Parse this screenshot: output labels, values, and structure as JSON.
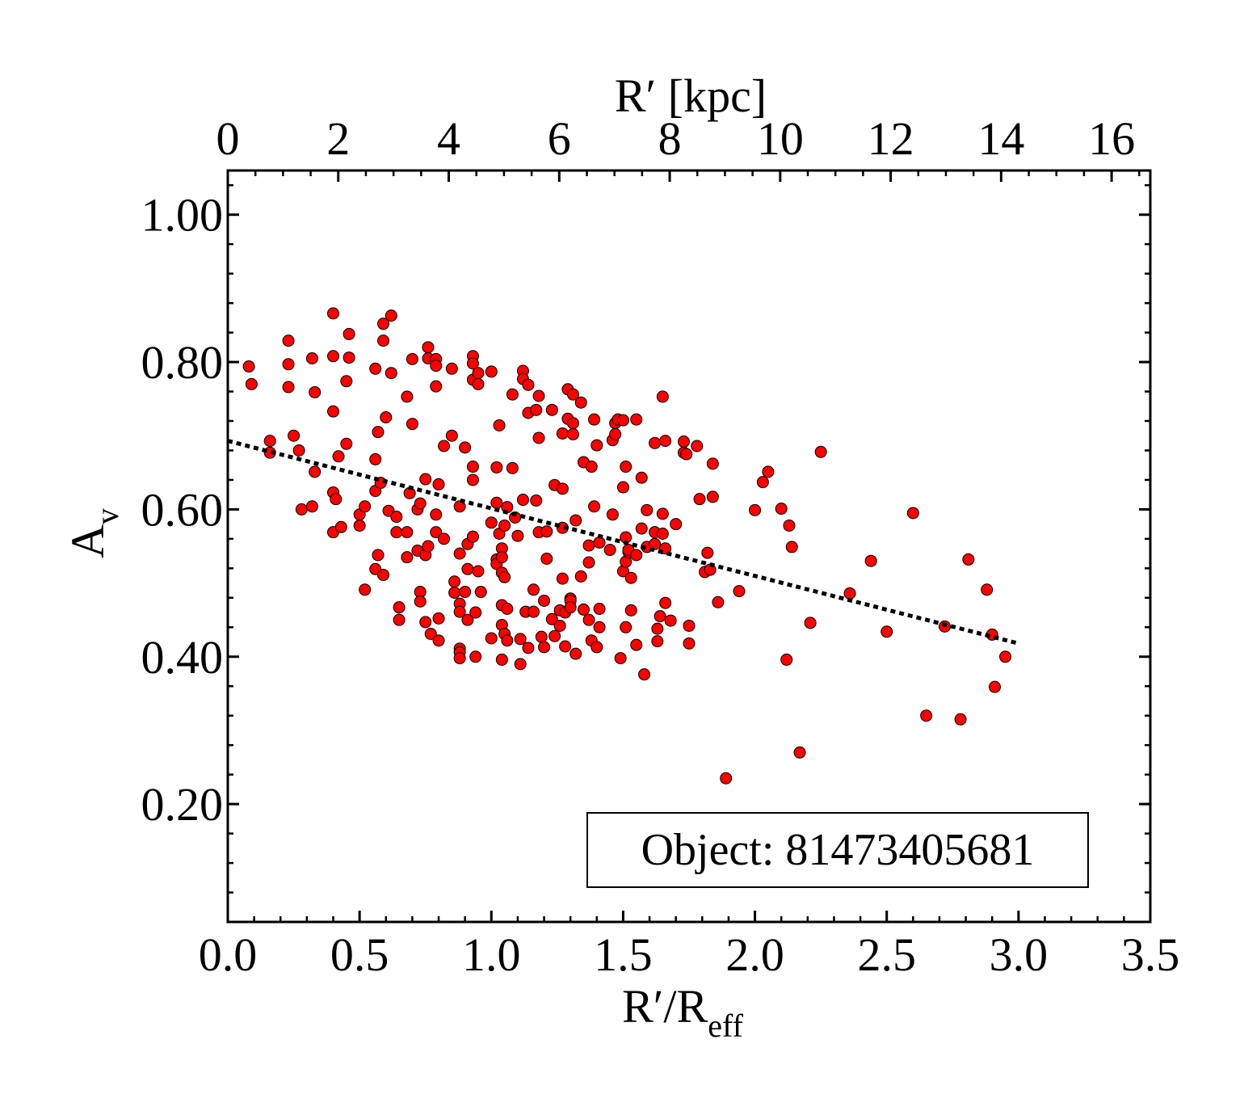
{
  "chart_data": {
    "type": "scatter",
    "xlabel_bottom": "R′/R",
    "xlabel_bottom_sub": "eff",
    "xlabel_top": "R′ [kpc]",
    "ylabel": "A",
    "ylabel_sub": "v",
    "xlim": [
      0.0,
      3.5
    ],
    "xlim_top": [
      0,
      16.7
    ],
    "ylim": [
      0.04,
      1.06
    ],
    "x_ticks": [
      "0.0",
      "0.5",
      "1.0",
      "1.5",
      "2.0",
      "2.5",
      "3.0",
      "3.5"
    ],
    "x_top_ticks": [
      "0",
      "2",
      "4",
      "6",
      "8",
      "10",
      "12",
      "14",
      "16"
    ],
    "y_ticks": [
      "0.20",
      "0.40",
      "0.60",
      "0.80",
      "1.00"
    ],
    "annotation": "Object: 81473405681",
    "marker_color": "#ff0000",
    "fit_line": {
      "x": [
        0.0,
        3.0
      ],
      "y": [
        0.693,
        0.418
      ],
      "style": "dotted",
      "color": "#000000"
    },
    "points": [
      [
        0.08,
        0.794
      ],
      [
        0.09,
        0.77
      ],
      [
        0.16,
        0.693
      ],
      [
        0.16,
        0.677
      ],
      [
        0.23,
        0.829
      ],
      [
        0.23,
        0.797
      ],
      [
        0.23,
        0.766
      ],
      [
        0.25,
        0.7
      ],
      [
        0.27,
        0.68
      ],
      [
        0.28,
        0.6
      ],
      [
        0.32,
        0.805
      ],
      [
        0.32,
        0.604
      ],
      [
        0.33,
        0.759
      ],
      [
        0.33,
        0.651
      ],
      [
        0.4,
        0.866
      ],
      [
        0.4,
        0.808
      ],
      [
        0.4,
        0.733
      ],
      [
        0.4,
        0.623
      ],
      [
        0.4,
        0.569
      ],
      [
        0.41,
        0.614
      ],
      [
        0.42,
        0.672
      ],
      [
        0.43,
        0.576
      ],
      [
        0.45,
        0.774
      ],
      [
        0.45,
        0.689
      ],
      [
        0.46,
        0.838
      ],
      [
        0.46,
        0.806
      ],
      [
        0.5,
        0.593
      ],
      [
        0.5,
        0.578
      ],
      [
        0.52,
        0.604
      ],
      [
        0.52,
        0.491
      ],
      [
        0.56,
        0.791
      ],
      [
        0.56,
        0.668
      ],
      [
        0.56,
        0.625
      ],
      [
        0.56,
        0.519
      ],
      [
        0.57,
        0.705
      ],
      [
        0.57,
        0.538
      ],
      [
        0.58,
        0.636
      ],
      [
        0.59,
        0.852
      ],
      [
        0.59,
        0.829
      ],
      [
        0.59,
        0.511
      ],
      [
        0.6,
        0.725
      ],
      [
        0.61,
        0.598
      ],
      [
        0.62,
        0.863
      ],
      [
        0.62,
        0.785
      ],
      [
        0.64,
        0.59
      ],
      [
        0.64,
        0.569
      ],
      [
        0.65,
        0.467
      ],
      [
        0.65,
        0.45
      ],
      [
        0.68,
        0.753
      ],
      [
        0.68,
        0.569
      ],
      [
        0.68,
        0.535
      ],
      [
        0.69,
        0.622
      ],
      [
        0.7,
        0.716
      ],
      [
        0.7,
        0.804
      ],
      [
        0.72,
        0.544
      ],
      [
        0.72,
        0.6
      ],
      [
        0.73,
        0.608
      ],
      [
        0.73,
        0.488
      ],
      [
        0.73,
        0.475
      ],
      [
        0.75,
        0.641
      ],
      [
        0.75,
        0.538
      ],
      [
        0.75,
        0.447
      ],
      [
        0.76,
        0.82
      ],
      [
        0.76,
        0.805
      ],
      [
        0.76,
        0.55
      ],
      [
        0.77,
        0.431
      ],
      [
        0.79,
        0.804
      ],
      [
        0.79,
        0.795
      ],
      [
        0.79,
        0.767
      ],
      [
        0.79,
        0.593
      ],
      [
        0.79,
        0.569
      ],
      [
        0.8,
        0.634
      ],
      [
        0.8,
        0.452
      ],
      [
        0.8,
        0.422
      ],
      [
        0.82,
        0.686
      ],
      [
        0.82,
        0.56
      ],
      [
        0.85,
        0.791
      ],
      [
        0.85,
        0.7
      ],
      [
        0.86,
        0.502
      ],
      [
        0.86,
        0.487
      ],
      [
        0.88,
        0.604
      ],
      [
        0.88,
        0.54
      ],
      [
        0.88,
        0.472
      ],
      [
        0.88,
        0.461
      ],
      [
        0.88,
        0.411
      ],
      [
        0.88,
        0.406
      ],
      [
        0.88,
        0.398
      ],
      [
        0.9,
        0.684
      ],
      [
        0.9,
        0.488
      ],
      [
        0.91,
        0.553
      ],
      [
        0.91,
        0.519
      ],
      [
        0.91,
        0.45
      ],
      [
        0.93,
        0.808
      ],
      [
        0.93,
        0.798
      ],
      [
        0.93,
        0.776
      ],
      [
        0.93,
        0.658
      ],
      [
        0.93,
        0.64
      ],
      [
        0.93,
        0.563
      ],
      [
        0.94,
        0.46
      ],
      [
        0.94,
        0.4
      ],
      [
        0.95,
        0.785
      ],
      [
        0.95,
        0.77
      ],
      [
        0.95,
        0.516
      ],
      [
        0.96,
        0.488
      ],
      [
        1.0,
        0.787
      ],
      [
        1.0,
        0.582
      ],
      [
        1.0,
        0.425
      ],
      [
        1.02,
        0.657
      ],
      [
        1.02,
        0.609
      ],
      [
        1.02,
        0.532
      ],
      [
        1.02,
        0.526
      ],
      [
        1.03,
        0.714
      ],
      [
        1.03,
        0.567
      ],
      [
        1.04,
        0.547
      ],
      [
        1.04,
        0.535
      ],
      [
        1.04,
        0.514
      ],
      [
        1.04,
        0.47
      ],
      [
        1.04,
        0.443
      ],
      [
        1.04,
        0.396
      ],
      [
        1.05,
        0.578
      ],
      [
        1.05,
        0.508
      ],
      [
        1.05,
        0.431
      ],
      [
        1.06,
        0.603
      ],
      [
        1.06,
        0.465
      ],
      [
        1.06,
        0.422
      ],
      [
        1.08,
        0.756
      ],
      [
        1.08,
        0.656
      ],
      [
        1.09,
        0.589
      ],
      [
        1.1,
        0.564
      ],
      [
        1.11,
        0.424
      ],
      [
        1.11,
        0.39
      ],
      [
        1.12,
        0.788
      ],
      [
        1.12,
        0.777
      ],
      [
        1.12,
        0.613
      ],
      [
        1.13,
        0.461
      ],
      [
        1.14,
        0.769
      ],
      [
        1.14,
        0.731
      ],
      [
        1.14,
        0.412
      ],
      [
        1.16,
        0.491
      ],
      [
        1.16,
        0.461
      ],
      [
        1.17,
        0.735
      ],
      [
        1.17,
        0.612
      ],
      [
        1.18,
        0.754
      ],
      [
        1.18,
        0.697
      ],
      [
        1.18,
        0.569
      ],
      [
        1.19,
        0.427
      ],
      [
        1.2,
        0.476
      ],
      [
        1.2,
        0.413
      ],
      [
        1.21,
        0.57
      ],
      [
        1.21,
        0.533
      ],
      [
        1.23,
        0.735
      ],
      [
        1.23,
        0.451
      ],
      [
        1.24,
        0.633
      ],
      [
        1.24,
        0.428
      ],
      [
        1.26,
        0.463
      ],
      [
        1.26,
        0.442
      ],
      [
        1.27,
        0.703
      ],
      [
        1.27,
        0.628
      ],
      [
        1.27,
        0.575
      ],
      [
        1.27,
        0.506
      ],
      [
        1.28,
        0.46
      ],
      [
        1.28,
        0.414
      ],
      [
        1.29,
        0.763
      ],
      [
        1.29,
        0.723
      ],
      [
        1.3,
        0.479
      ],
      [
        1.3,
        0.476
      ],
      [
        1.3,
        0.467
      ],
      [
        1.31,
        0.756
      ],
      [
        1.31,
        0.717
      ],
      [
        1.31,
        0.702
      ],
      [
        1.32,
        0.585
      ],
      [
        1.32,
        0.404
      ],
      [
        1.34,
        0.745
      ],
      [
        1.34,
        0.509
      ],
      [
        1.35,
        0.664
      ],
      [
        1.35,
        0.464
      ],
      [
        1.37,
        0.551
      ],
      [
        1.37,
        0.528
      ],
      [
        1.37,
        0.45
      ],
      [
        1.38,
        0.658
      ],
      [
        1.38,
        0.422
      ],
      [
        1.39,
        0.722
      ],
      [
        1.39,
        0.604
      ],
      [
        1.4,
        0.687
      ],
      [
        1.4,
        0.413
      ],
      [
        1.41,
        0.555
      ],
      [
        1.41,
        0.44
      ],
      [
        1.41,
        0.465
      ],
      [
        1.45,
        0.545
      ],
      [
        1.46,
        0.694
      ],
      [
        1.46,
        0.593
      ],
      [
        1.47,
        0.717
      ],
      [
        1.47,
        0.702
      ],
      [
        1.48,
        0.722
      ],
      [
        1.49,
        0.398
      ],
      [
        1.5,
        0.721
      ],
      [
        1.5,
        0.63
      ],
      [
        1.5,
        0.516
      ],
      [
        1.51,
        0.562
      ],
      [
        1.51,
        0.44
      ],
      [
        1.51,
        0.658
      ],
      [
        1.51,
        0.529
      ],
      [
        1.52,
        0.542
      ],
      [
        1.52,
        0.545
      ],
      [
        1.53,
        0.507
      ],
      [
        1.53,
        0.463
      ],
      [
        1.55,
        0.722
      ],
      [
        1.55,
        0.538
      ],
      [
        1.55,
        0.416
      ],
      [
        1.57,
        0.643
      ],
      [
        1.57,
        0.574
      ],
      [
        1.58,
        0.376
      ],
      [
        1.59,
        0.599
      ],
      [
        1.59,
        0.549
      ],
      [
        1.62,
        0.69
      ],
      [
        1.62,
        0.569
      ],
      [
        1.62,
        0.553
      ],
      [
        1.63,
        0.438
      ],
      [
        1.63,
        0.421
      ],
      [
        1.64,
        0.455
      ],
      [
        1.65,
        0.753
      ],
      [
        1.65,
        0.594
      ],
      [
        1.65,
        0.567
      ],
      [
        1.66,
        0.693
      ],
      [
        1.66,
        0.547
      ],
      [
        1.66,
        0.473
      ],
      [
        1.68,
        0.449
      ],
      [
        1.7,
        0.58
      ],
      [
        1.73,
        0.692
      ],
      [
        1.73,
        0.677
      ],
      [
        1.74,
        0.675
      ],
      [
        1.75,
        0.442
      ],
      [
        1.75,
        0.418
      ],
      [
        1.78,
        0.686
      ],
      [
        1.79,
        0.614
      ],
      [
        1.81,
        0.515
      ],
      [
        1.82,
        0.541
      ],
      [
        1.83,
        0.518
      ],
      [
        1.84,
        0.662
      ],
      [
        1.84,
        0.617
      ],
      [
        1.86,
        0.474
      ],
      [
        1.89,
        0.235
      ],
      [
        1.94,
        0.489
      ],
      [
        2.0,
        0.599
      ],
      [
        2.03,
        0.637
      ],
      [
        2.05,
        0.651
      ],
      [
        2.1,
        0.601
      ],
      [
        2.13,
        0.578
      ],
      [
        2.14,
        0.549
      ],
      [
        2.12,
        0.396
      ],
      [
        2.17,
        0.27
      ],
      [
        2.21,
        0.446
      ],
      [
        2.25,
        0.678
      ],
      [
        2.36,
        0.486
      ],
      [
        2.44,
        0.53
      ],
      [
        2.5,
        0.434
      ],
      [
        2.6,
        0.595
      ],
      [
        2.65,
        0.32
      ],
      [
        2.72,
        0.441
      ],
      [
        2.78,
        0.315
      ],
      [
        2.81,
        0.532
      ],
      [
        2.88,
        0.491
      ],
      [
        2.9,
        0.43
      ],
      [
        2.91,
        0.359
      ],
      [
        2.95,
        0.4
      ]
    ]
  }
}
